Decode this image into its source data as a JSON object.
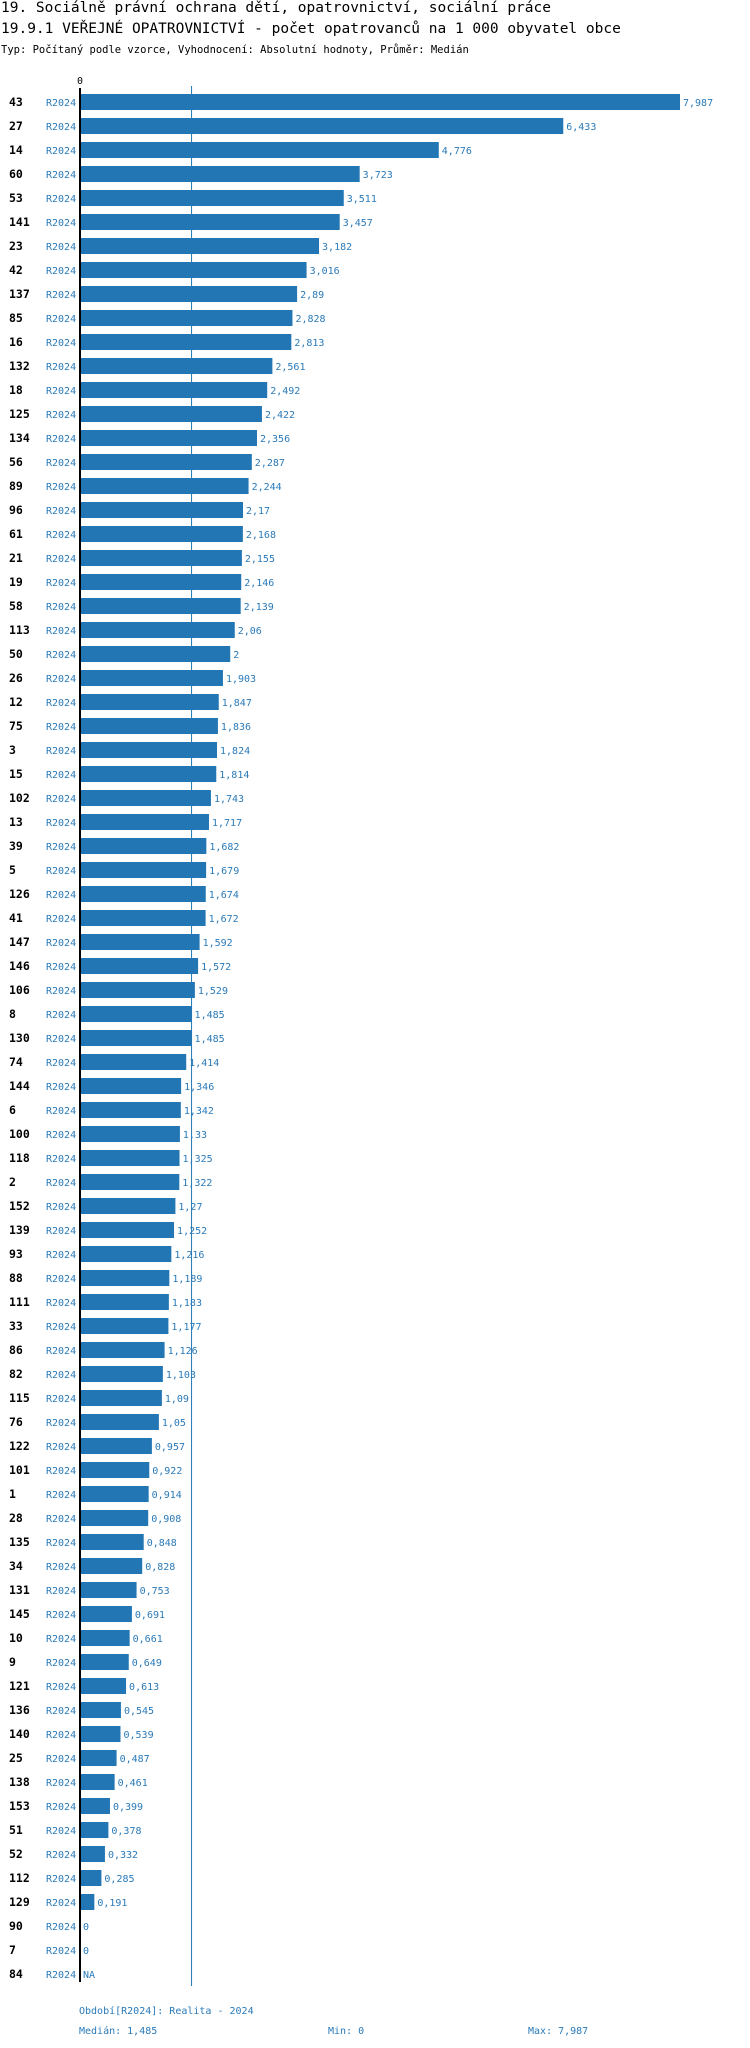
{
  "header": {
    "title_line1": "19. Sociálně právní ochrana dětí, opatrovnictví, sociální práce",
    "title_line2": "19.9.1 VEŘEJNÉ OPATROVNICTVÍ - počet opatrovanců na 1 000 obyvatel obce",
    "subtitle": "Typ: Počítaný podle vzorce, Vyhodnocení: Absolutní hodnoty, Průměr: Medián"
  },
  "footer": {
    "period": "Období[R2024]: Realita - 2024",
    "median": "Medián: 1,485",
    "min": "Min: 0",
    "max": "Max: 7,987"
  },
  "colors": {
    "bar": "#2276b4",
    "label": "#2a7ab9",
    "median_line": "#2276b4"
  },
  "chart_data": {
    "type": "bar",
    "orientation": "horizontal",
    "series_label": "R2024",
    "x_tick_label": "0",
    "xlim": [
      0,
      7.987
    ],
    "median": 1.485,
    "categories": [
      "43",
      "27",
      "14",
      "60",
      "53",
      "141",
      "23",
      "42",
      "137",
      "85",
      "16",
      "132",
      "18",
      "125",
      "134",
      "56",
      "89",
      "96",
      "61",
      "21",
      "19",
      "58",
      "113",
      "50",
      "26",
      "12",
      "75",
      "3",
      "15",
      "102",
      "13",
      "39",
      "5",
      "126",
      "41",
      "147",
      "146",
      "106",
      "8",
      "130",
      "74",
      "144",
      "6",
      "100",
      "118",
      "2",
      "152",
      "139",
      "93",
      "88",
      "111",
      "33",
      "86",
      "82",
      "115",
      "76",
      "122",
      "101",
      "1",
      "28",
      "135",
      "34",
      "131",
      "145",
      "10",
      "9",
      "121",
      "136",
      "140",
      "25",
      "138",
      "153",
      "51",
      "52",
      "112",
      "129",
      "90",
      "7",
      "84"
    ],
    "values": [
      7.987,
      6.433,
      4.776,
      3.723,
      3.511,
      3.457,
      3.182,
      3.016,
      2.89,
      2.828,
      2.813,
      2.561,
      2.492,
      2.422,
      2.356,
      2.287,
      2.244,
      2.17,
      2.168,
      2.155,
      2.146,
      2.139,
      2.06,
      2,
      1.903,
      1.847,
      1.836,
      1.824,
      1.814,
      1.743,
      1.717,
      1.682,
      1.679,
      1.674,
      1.672,
      1.592,
      1.572,
      1.529,
      1.485,
      1.485,
      1.414,
      1.346,
      1.342,
      1.33,
      1.325,
      1.322,
      1.27,
      1.252,
      1.216,
      1.189,
      1.183,
      1.177,
      1.126,
      1.103,
      1.09,
      1.05,
      0.957,
      0.922,
      0.914,
      0.908,
      0.848,
      0.828,
      0.753,
      0.691,
      0.661,
      0.649,
      0.613,
      0.545,
      0.539,
      0.487,
      0.461,
      0.399,
      0.378,
      0.332,
      0.285,
      0.191,
      0,
      0,
      null
    ],
    "value_labels": [
      "7,987",
      "6,433",
      "4,776",
      "3,723",
      "3,511",
      "3,457",
      "3,182",
      "3,016",
      "2,89",
      "2,828",
      "2,813",
      "2,561",
      "2,492",
      "2,422",
      "2,356",
      "2,287",
      "2,244",
      "2,17",
      "2,168",
      "2,155",
      "2,146",
      "2,139",
      "2,06",
      "2",
      "1,903",
      "1,847",
      "1,836",
      "1,824",
      "1,814",
      "1,743",
      "1,717",
      "1,682",
      "1,679",
      "1,674",
      "1,672",
      "1,592",
      "1,572",
      "1,529",
      "1,485",
      "1,485",
      "1,414",
      "1,346",
      "1,342",
      "1,33",
      "1,325",
      "1,322",
      "1,27",
      "1,252",
      "1,216",
      "1,189",
      "1,183",
      "1,177",
      "1,126",
      "1,103",
      "1,09",
      "1,05",
      "0,957",
      "0,922",
      "0,914",
      "0,908",
      "0,848",
      "0,828",
      "0,753",
      "0,691",
      "0,661",
      "0,649",
      "0,613",
      "0,545",
      "0,539",
      "0,487",
      "0,461",
      "0,399",
      "0,378",
      "0,332",
      "0,285",
      "0,191",
      "0",
      "0",
      "NA"
    ]
  }
}
